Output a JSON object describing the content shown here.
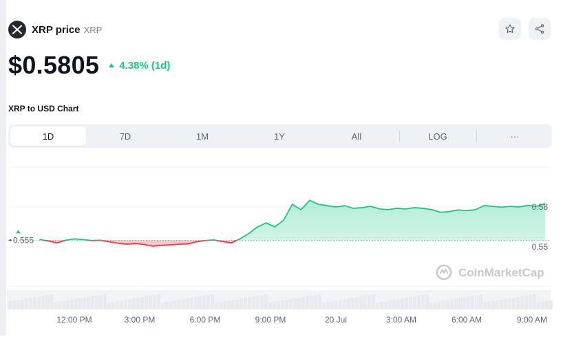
{
  "coin": {
    "name": "XRP price",
    "symbol": "XRP",
    "logo_icon": "xrp-logo-icon"
  },
  "actions": {
    "watchlist_icon": "star-icon",
    "share_icon": "share-icon"
  },
  "price": {
    "value": "$0.5805",
    "change": "4.38% (1d)",
    "change_direction": "up"
  },
  "chart_section": {
    "title": "XRP to USD Chart",
    "tabs": [
      {
        "label": "1D",
        "active": true
      },
      {
        "label": "7D",
        "active": false
      },
      {
        "label": "1M",
        "active": false
      },
      {
        "label": "1Y",
        "active": false
      },
      {
        "label": "All",
        "active": false
      },
      {
        "label": "LOG",
        "active": false
      },
      {
        "label": "···",
        "active": false
      }
    ]
  },
  "chart_data": {
    "type": "area",
    "reference_value": 0.555,
    "reference_label": "0.555",
    "y_ticks": [
      0.58,
      0.55
    ],
    "y_tick_labels": [
      "0.58",
      "0.55"
    ],
    "x_tick_labels": [
      "12:00 PM",
      "3:00 PM",
      "6:00 PM",
      "9:00 PM",
      "20 Jul",
      "3:00 AM",
      "6:00 AM",
      "9:00 AM"
    ],
    "x_tick_hours": [
      12,
      15,
      18,
      21,
      24,
      27,
      30,
      33
    ],
    "x_hours": [
      10.4,
      10.8,
      11.2,
      11.6,
      12.0,
      12.4,
      12.8,
      13.2,
      13.6,
      14.0,
      14.4,
      14.8,
      15.2,
      15.6,
      16.0,
      16.4,
      16.8,
      17.2,
      17.6,
      18.0,
      18.4,
      18.8,
      19.2,
      19.6,
      20.0,
      20.4,
      20.8,
      21.2,
      21.6,
      22.0,
      22.4,
      22.8,
      23.2,
      23.6,
      24.0,
      24.4,
      24.8,
      25.2,
      25.6,
      26.0,
      26.4,
      26.8,
      27.2,
      27.6,
      28.0,
      28.4,
      28.8,
      29.2,
      29.6,
      30.0,
      30.4,
      30.8,
      31.2,
      31.6,
      32.0,
      32.4,
      32.8,
      33.2,
      33.6
    ],
    "values": [
      0.5555,
      0.5545,
      0.553,
      0.555,
      0.556,
      0.5555,
      0.5548,
      0.555,
      0.5538,
      0.5528,
      0.552,
      0.5525,
      0.5518,
      0.5505,
      0.5512,
      0.5515,
      0.552,
      0.5522,
      0.5538,
      0.5548,
      0.5552,
      0.554,
      0.553,
      0.556,
      0.56,
      0.565,
      0.568,
      0.565,
      0.57,
      0.582,
      0.578,
      0.585,
      0.582,
      0.581,
      0.58,
      0.581,
      0.579,
      0.5795,
      0.5805,
      0.5785,
      0.578,
      0.579,
      0.5785,
      0.5795,
      0.579,
      0.578,
      0.576,
      0.5765,
      0.5778,
      0.5772,
      0.578,
      0.581,
      0.5805,
      0.5798,
      0.5805,
      0.58,
      0.5812,
      0.5805,
      0.5825
    ],
    "positive_color": "#16c784",
    "negative_color": "#ea3943",
    "grid": true
  },
  "watermark": {
    "text": "CoinMarketCap",
    "icon": "coinmarketcap-logo-icon"
  }
}
